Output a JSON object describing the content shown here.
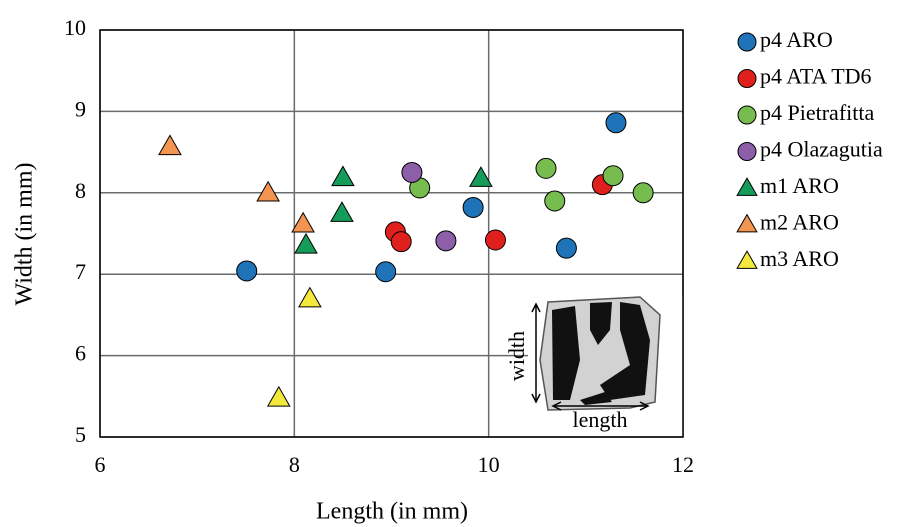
{
  "chart_data": {
    "type": "scatter",
    "x_label": "Length (in mm)",
    "y_label": "Width (in mm)",
    "xlim": [
      6,
      12
    ],
    "xticks": [
      6,
      8,
      10,
      12
    ],
    "ylim": [
      5,
      10
    ],
    "yticks": [
      5,
      6,
      7,
      8,
      9,
      10
    ],
    "grid": true,
    "legend": "right",
    "annotations": [
      "width",
      "length"
    ],
    "series": [
      {
        "name": "p4 ARO",
        "color": "#1f73b8",
        "marker": "circle",
        "x": [
          7.51,
          8.94,
          9.84,
          10.8,
          11.31
        ],
        "values": [
          7.04,
          7.03,
          7.82,
          7.32,
          8.86
        ]
      },
      {
        "name": "p4 ATA TD6",
        "color": "#e0201c",
        "marker": "circle",
        "x": [
          9.04,
          9.1,
          10.07,
          11.17
        ],
        "values": [
          7.52,
          7.4,
          7.42,
          8.1
        ]
      },
      {
        "name": "p4 Pietrafitta",
        "color": "#77bc4f",
        "marker": "circle",
        "x": [
          9.29,
          10.59,
          10.68,
          11.28,
          11.59
        ],
        "values": [
          8.06,
          8.3,
          7.9,
          8.21,
          8.0
        ]
      },
      {
        "name": "p4 Olazagutia",
        "color": "#8c5fa8",
        "marker": "circle",
        "x": [
          9.21,
          9.56
        ],
        "values": [
          8.25,
          7.41
        ]
      },
      {
        "name": "m1 ARO",
        "color": "#169c5a",
        "marker": "triangle",
        "x": [
          8.12,
          8.49,
          8.5,
          9.92
        ],
        "values": [
          7.36,
          7.75,
          8.19,
          8.18
        ]
      },
      {
        "name": "m2 ARO",
        "color": "#f39451",
        "marker": "triangle",
        "x": [
          6.72,
          7.73,
          8.09
        ],
        "values": [
          8.57,
          8.0,
          7.62
        ]
      },
      {
        "name": "m3 ARO",
        "color": "#f3e93c",
        "marker": "triangle",
        "x": [
          8.16,
          7.84
        ],
        "values": [
          6.7,
          5.48
        ]
      }
    ]
  }
}
